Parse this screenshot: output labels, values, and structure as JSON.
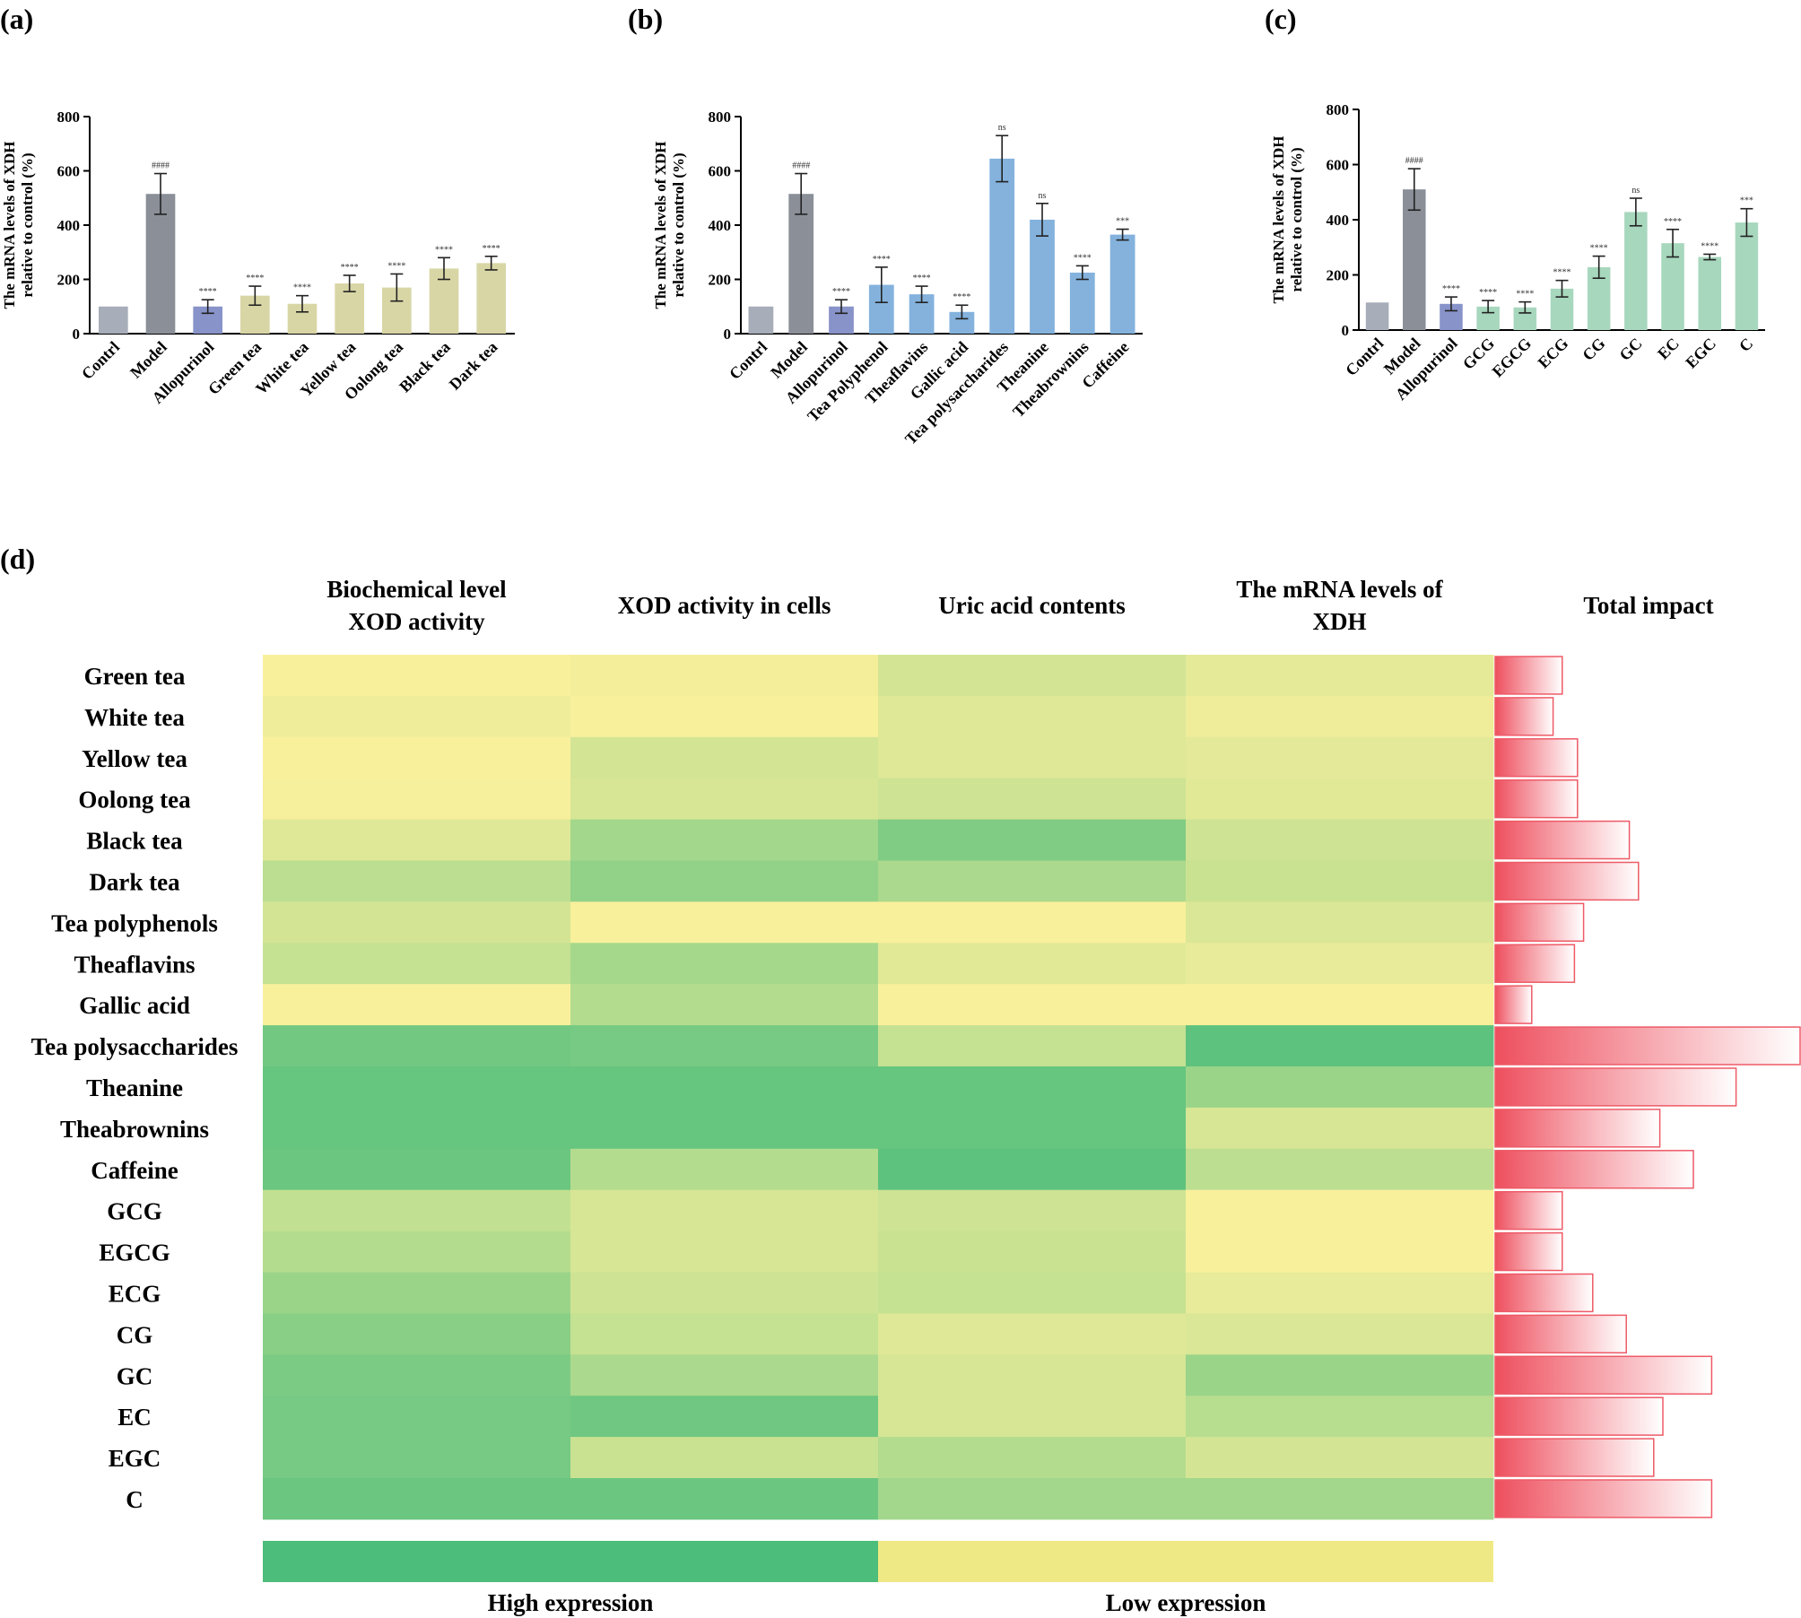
{
  "colors": {
    "control": "#a7adb9",
    "model": "#8a8f98",
    "allopurinol": "#8893c9",
    "tea_a": "#d9d6a6",
    "tea_b": "#84b2dd",
    "tea_c": "#a7d7bd",
    "heat_low": "#f9f09c",
    "heat_high": "#4cbd7a",
    "impact": "#ee5a67"
  },
  "chart_data": [
    {
      "panel": "(a)",
      "type": "bar",
      "ylabel_line1": "The mRNA levels of  XDH",
      "ylabel_line2": "relative to control (%)",
      "ylim": [
        0,
        800
      ],
      "yticks": [
        "0",
        "200",
        "400",
        "600",
        "800"
      ],
      "categories": [
        "Contrl",
        "Model",
        "Allopurinol",
        "Green tea",
        "White tea",
        "Yellow tea",
        "Oolong tea",
        "Black tea",
        "Dark tea"
      ],
      "values": [
        100,
        515,
        100,
        140,
        110,
        185,
        170,
        240,
        260
      ],
      "errors": [
        0,
        75,
        25,
        35,
        30,
        30,
        50,
        40,
        25
      ],
      "annotations": [
        "",
        "####",
        "****",
        "****",
        "****",
        "****",
        "****",
        "****",
        "****"
      ],
      "bar_colors": [
        "control",
        "model",
        "allopurinol",
        "tea_a",
        "tea_a",
        "tea_a",
        "tea_a",
        "tea_a",
        "tea_a"
      ]
    },
    {
      "panel": "(b)",
      "type": "bar",
      "ylabel_line1": "The mRNA levels of  XDH",
      "ylabel_line2": "relative to control (%)",
      "ylim": [
        0,
        800
      ],
      "yticks": [
        "0",
        "200",
        "400",
        "600",
        "800"
      ],
      "categories": [
        "Contrl",
        "Model",
        "Allopurinol",
        "Tea Polyphenol",
        "Theaflavins",
        "Gallic acid",
        "Tea polysaccharides",
        "Theanine",
        "Theabrownins",
        "Caffeine"
      ],
      "values": [
        100,
        515,
        100,
        180,
        145,
        80,
        645,
        420,
        225,
        365
      ],
      "errors": [
        0,
        75,
        25,
        65,
        30,
        25,
        85,
        60,
        25,
        20
      ],
      "annotations": [
        "",
        "####",
        "****",
        "****",
        "****",
        "****",
        "ns",
        "ns",
        "****",
        "***"
      ],
      "bar_colors": [
        "control",
        "model",
        "allopurinol",
        "tea_b",
        "tea_b",
        "tea_b",
        "tea_b",
        "tea_b",
        "tea_b",
        "tea_b"
      ]
    },
    {
      "panel": "(c)",
      "type": "bar",
      "ylabel_line1": "The mRNA levels of  XDH",
      "ylabel_line2": "relative to control (%)",
      "ylim": [
        0,
        800
      ],
      "yticks": [
        "0",
        "200",
        "400",
        "600",
        "800"
      ],
      "categories": [
        "Contrl",
        "Model",
        "Allopurinol",
        "GCG",
        "EGCG",
        "ECG",
        "CG",
        "GC",
        "EC",
        "EGC",
        "C"
      ],
      "values": [
        100,
        510,
        95,
        85,
        82,
        150,
        228,
        428,
        315,
        265,
        390
      ],
      "errors": [
        0,
        75,
        25,
        22,
        20,
        30,
        40,
        50,
        50,
        10,
        50
      ],
      "annotations": [
        "",
        "####",
        "****",
        "****",
        "****",
        "****",
        "****",
        "ns",
        "****",
        "****",
        "***"
      ],
      "bar_colors": [
        "control",
        "model",
        "allopurinol",
        "tea_c",
        "tea_c",
        "tea_c",
        "tea_c",
        "tea_c",
        "tea_c",
        "tea_c",
        "tea_c"
      ]
    },
    {
      "panel": "(d)",
      "type": "heatmap",
      "columns": [
        "Biochemical level|XOD activity",
        "XOD activity in cells",
        "Uric acid contents",
        "The mRNA levels of|XDH"
      ],
      "total_impact_label": "Total impact",
      "rows": [
        "Green tea",
        "White tea",
        "Yellow tea",
        "Oolong tea",
        "Black tea",
        "Dark tea",
        "Tea polyphenols",
        "Theaflavins",
        "Gallic acid",
        "Tea polysaccharides",
        "Theanine",
        "Theabrownins",
        "Caffeine",
        "GCG",
        "EGCG",
        "ECG",
        "CG",
        "GC",
        "EC",
        "EGC",
        "C"
      ],
      "expression": [
        [
          0.0,
          0.03,
          0.22,
          0.12
        ],
        [
          0.05,
          0.0,
          0.15,
          0.06
        ],
        [
          0.0,
          0.22,
          0.15,
          0.13
        ],
        [
          0.02,
          0.2,
          0.25,
          0.14
        ],
        [
          0.15,
          0.5,
          0.7,
          0.25
        ],
        [
          0.35,
          0.6,
          0.45,
          0.28
        ],
        [
          0.22,
          0.0,
          0.0,
          0.18
        ],
        [
          0.3,
          0.48,
          0.14,
          0.1
        ],
        [
          0.0,
          0.4,
          0.0,
          0.0
        ],
        [
          0.78,
          0.75,
          0.3,
          0.9
        ],
        [
          0.85,
          0.85,
          0.85,
          0.55
        ],
        [
          0.85,
          0.85,
          0.85,
          0.2
        ],
        [
          0.82,
          0.4,
          0.9,
          0.35
        ],
        [
          0.32,
          0.2,
          0.25,
          0.0
        ],
        [
          0.4,
          0.2,
          0.28,
          0.0
        ],
        [
          0.55,
          0.25,
          0.3,
          0.1
        ],
        [
          0.65,
          0.3,
          0.15,
          0.18
        ],
        [
          0.72,
          0.45,
          0.2,
          0.55
        ],
        [
          0.75,
          0.8,
          0.2,
          0.38
        ],
        [
          0.75,
          0.28,
          0.4,
          0.22
        ],
        [
          0.82,
          0.82,
          0.5,
          0.5
        ]
      ],
      "total_impact": [
        0.22,
        0.19,
        0.27,
        0.27,
        0.44,
        0.47,
        0.29,
        0.26,
        0.12,
        1.0,
        0.79,
        0.54,
        0.65,
        0.22,
        0.22,
        0.32,
        0.43,
        0.71,
        0.55,
        0.52,
        0.71
      ],
      "legend_high": "High expression",
      "legend_low": "Low expression"
    }
  ]
}
